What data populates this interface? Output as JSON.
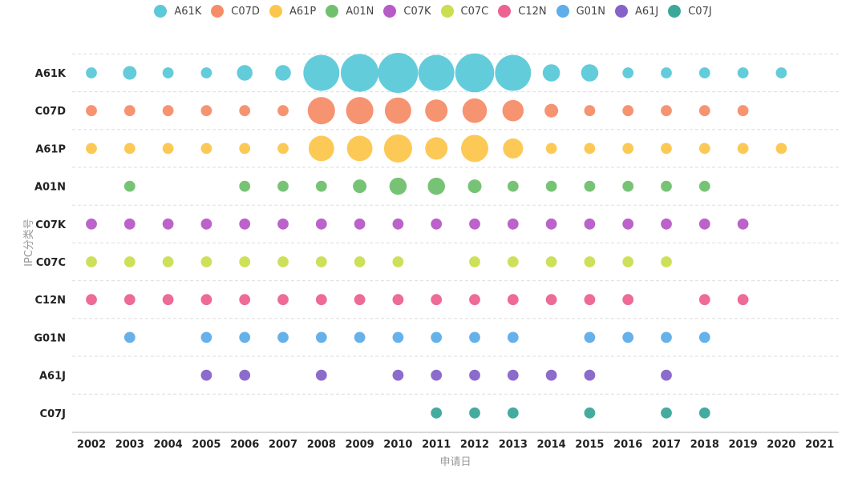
{
  "chart_data": {
    "type": "bubble",
    "title": "",
    "xlabel": "申请日",
    "ylabel": "IPC分类号",
    "x": [
      "2002",
      "2003",
      "2004",
      "2005",
      "2006",
      "2007",
      "2008",
      "2009",
      "2010",
      "2011",
      "2012",
      "2013",
      "2014",
      "2015",
      "2016",
      "2017",
      "2018",
      "2019",
      "2020",
      "2021"
    ],
    "legend_position": "top",
    "series": [
      {
        "name": "A61K",
        "color": "#5bc9d8",
        "values": [
          1,
          2,
          1,
          1,
          3,
          3,
          25,
          28,
          32,
          25,
          30,
          25,
          4,
          4,
          1,
          1,
          1,
          1,
          1,
          null
        ]
      },
      {
        "name": "C07D",
        "color": "#f68d69",
        "values": [
          1,
          1,
          1,
          1,
          1,
          1,
          13,
          13,
          12,
          8,
          10,
          7,
          2,
          1,
          1,
          1,
          1,
          1,
          null,
          null
        ]
      },
      {
        "name": "A61P",
        "color": "#fcc64d",
        "values": [
          1,
          1,
          1,
          1,
          1,
          1,
          11,
          11,
          14,
          8,
          13,
          6,
          1,
          1,
          1,
          1,
          1,
          1,
          1,
          null
        ]
      },
      {
        "name": "A01N",
        "color": "#70c06e",
        "values": [
          null,
          1,
          null,
          null,
          1,
          1,
          1,
          2,
          4,
          4,
          2,
          1,
          1,
          1,
          1,
          1,
          1,
          null,
          null,
          null
        ]
      },
      {
        "name": "C07K",
        "color": "#b85ac8",
        "values": [
          1,
          1,
          1,
          1,
          1,
          1,
          1,
          1,
          1,
          1,
          1,
          1,
          1,
          1,
          1,
          1,
          1,
          1,
          null,
          null
        ]
      },
      {
        "name": "C07C",
        "color": "#cbde50",
        "values": [
          1,
          1,
          1,
          1,
          1,
          1,
          1,
          1,
          1,
          null,
          1,
          1,
          1,
          1,
          1,
          1,
          null,
          null,
          null,
          null
        ]
      },
      {
        "name": "C12N",
        "color": "#ec6390",
        "values": [
          1,
          1,
          1,
          1,
          1,
          1,
          1,
          1,
          1,
          1,
          1,
          1,
          1,
          1,
          1,
          null,
          1,
          1,
          null,
          null
        ]
      },
      {
        "name": "G01N",
        "color": "#5fade9",
        "values": [
          null,
          1,
          null,
          1,
          1,
          1,
          1,
          1,
          1,
          1,
          1,
          1,
          null,
          1,
          1,
          1,
          1,
          null,
          null,
          null
        ]
      },
      {
        "name": "A61J",
        "color": "#8663c9",
        "values": [
          null,
          null,
          null,
          1,
          1,
          null,
          1,
          null,
          1,
          1,
          1,
          1,
          1,
          1,
          null,
          1,
          null,
          null,
          null,
          null
        ]
      },
      {
        "name": "C07J",
        "color": "#3aa89a",
        "values": [
          null,
          null,
          null,
          null,
          null,
          null,
          null,
          null,
          null,
          1,
          1,
          1,
          null,
          1,
          null,
          1,
          1,
          null,
          null,
          null
        ]
      }
    ]
  }
}
